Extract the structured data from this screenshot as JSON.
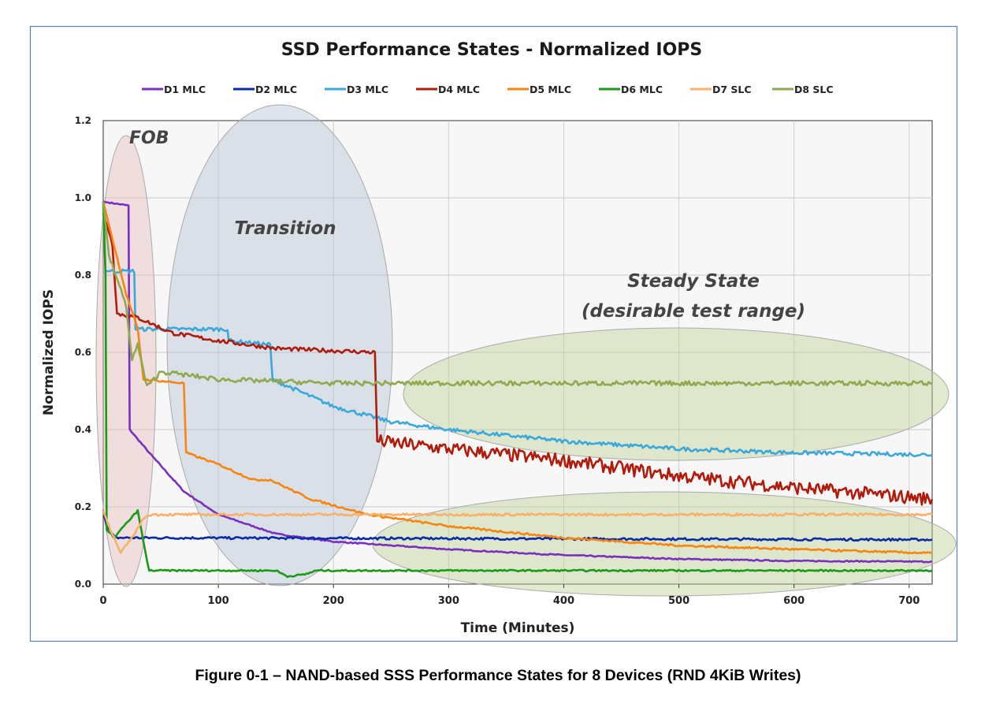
{
  "chart_data": {
    "type": "line",
    "title": "SSD Performance States - Normalized IOPS",
    "xlabel": "Time (Minutes)",
    "ylabel": "Normalized IOPS",
    "xlim": [
      0,
      720
    ],
    "ylim": [
      0,
      1.2
    ],
    "xticks": [
      "0",
      "100",
      "200",
      "300",
      "400",
      "500",
      "600",
      "700"
    ],
    "xtick_values": [
      0,
      100,
      200,
      300,
      400,
      500,
      600,
      700
    ],
    "yticks": [
      "0.0",
      "0.2",
      "0.4",
      "0.6",
      "0.8",
      "1.0",
      "1.2"
    ],
    "ytick_values": [
      0,
      0.2,
      0.4,
      0.6,
      0.8,
      1.0,
      1.2
    ],
    "grid": true,
    "legend_position": "top",
    "series": [
      {
        "name": "D1 MLC",
        "color": "#7B2FBE",
        "points": [
          [
            0,
            0.99
          ],
          [
            22,
            0.98
          ],
          [
            23,
            0.4
          ],
          [
            40,
            0.34
          ],
          [
            70,
            0.24
          ],
          [
            100,
            0.18
          ],
          [
            150,
            0.13
          ],
          [
            200,
            0.11
          ],
          [
            300,
            0.09
          ],
          [
            400,
            0.075
          ],
          [
            500,
            0.065
          ],
          [
            600,
            0.06
          ],
          [
            720,
            0.058
          ]
        ]
      },
      {
        "name": "D2 MLC",
        "color": "#0A2BA8",
        "points": [
          [
            0,
            0.19
          ],
          [
            3,
            0.15
          ],
          [
            10,
            0.12
          ],
          [
            720,
            0.115
          ]
        ]
      },
      {
        "name": "D3 MLC",
        "color": "#3BA8DC",
        "points": [
          [
            0,
            0.99
          ],
          [
            2,
            0.81
          ],
          [
            27,
            0.81
          ],
          [
            28,
            0.66
          ],
          [
            108,
            0.66
          ],
          [
            109,
            0.63
          ],
          [
            145,
            0.62
          ],
          [
            147,
            0.53
          ],
          [
            200,
            0.46
          ],
          [
            250,
            0.42
          ],
          [
            300,
            0.4
          ],
          [
            400,
            0.37
          ],
          [
            500,
            0.35
          ],
          [
            600,
            0.34
          ],
          [
            720,
            0.335
          ]
        ]
      },
      {
        "name": "D4 MLC",
        "color": "#B01C0C",
        "points": [
          [
            0,
            0.96
          ],
          [
            8,
            0.88
          ],
          [
            12,
            0.7
          ],
          [
            30,
            0.69
          ],
          [
            60,
            0.65
          ],
          [
            100,
            0.63
          ],
          [
            150,
            0.61
          ],
          [
            236,
            0.6
          ],
          [
            238,
            0.37
          ],
          [
            300,
            0.35
          ],
          [
            400,
            0.32
          ],
          [
            500,
            0.28
          ],
          [
            600,
            0.25
          ],
          [
            720,
            0.22
          ]
        ]
      },
      {
        "name": "D5 MLC",
        "color": "#F7850F",
        "points": [
          [
            0,
            0.99
          ],
          [
            20,
            0.75
          ],
          [
            30,
            0.66
          ],
          [
            35,
            0.53
          ],
          [
            70,
            0.52
          ],
          [
            72,
            0.34
          ],
          [
            100,
            0.31
          ],
          [
            130,
            0.27
          ],
          [
            145,
            0.27
          ],
          [
            180,
            0.22
          ],
          [
            230,
            0.18
          ],
          [
            300,
            0.15
          ],
          [
            400,
            0.12
          ],
          [
            500,
            0.1
          ],
          [
            600,
            0.09
          ],
          [
            720,
            0.08
          ]
        ]
      },
      {
        "name": "D6 MLC",
        "color": "#1A9A16",
        "points": [
          [
            0,
            0.99
          ],
          [
            2,
            0.8
          ],
          [
            3,
            0.14
          ],
          [
            10,
            0.12
          ],
          [
            15,
            0.14
          ],
          [
            30,
            0.19
          ],
          [
            38,
            0.06
          ],
          [
            40,
            0.035
          ],
          [
            150,
            0.035
          ],
          [
            160,
            0.02
          ],
          [
            175,
            0.025
          ],
          [
            185,
            0.035
          ],
          [
            720,
            0.035
          ]
        ]
      },
      {
        "name": "D7 SLC",
        "color": "#F8B06A",
        "points": [
          [
            0,
            0.19
          ],
          [
            5,
            0.15
          ],
          [
            15,
            0.08
          ],
          [
            25,
            0.12
          ],
          [
            35,
            0.17
          ],
          [
            40,
            0.18
          ],
          [
            720,
            0.18
          ]
        ]
      },
      {
        "name": "D8 SLC",
        "color": "#8FAA4E",
        "points": [
          [
            0,
            0.99
          ],
          [
            5,
            0.85
          ],
          [
            20,
            0.72
          ],
          [
            25,
            0.58
          ],
          [
            30,
            0.62
          ],
          [
            38,
            0.51
          ],
          [
            50,
            0.55
          ],
          [
            100,
            0.53
          ],
          [
            200,
            0.52
          ],
          [
            720,
            0.52
          ]
        ]
      }
    ],
    "annotations": {
      "fob": "FOB",
      "transition": "Transition",
      "steady_line1": "Steady State",
      "steady_line2": "(desirable test range)"
    }
  },
  "caption": "Figure 0-1 – NAND-based SSS Performance States for 8 Devices (RND 4KiB Writes)"
}
